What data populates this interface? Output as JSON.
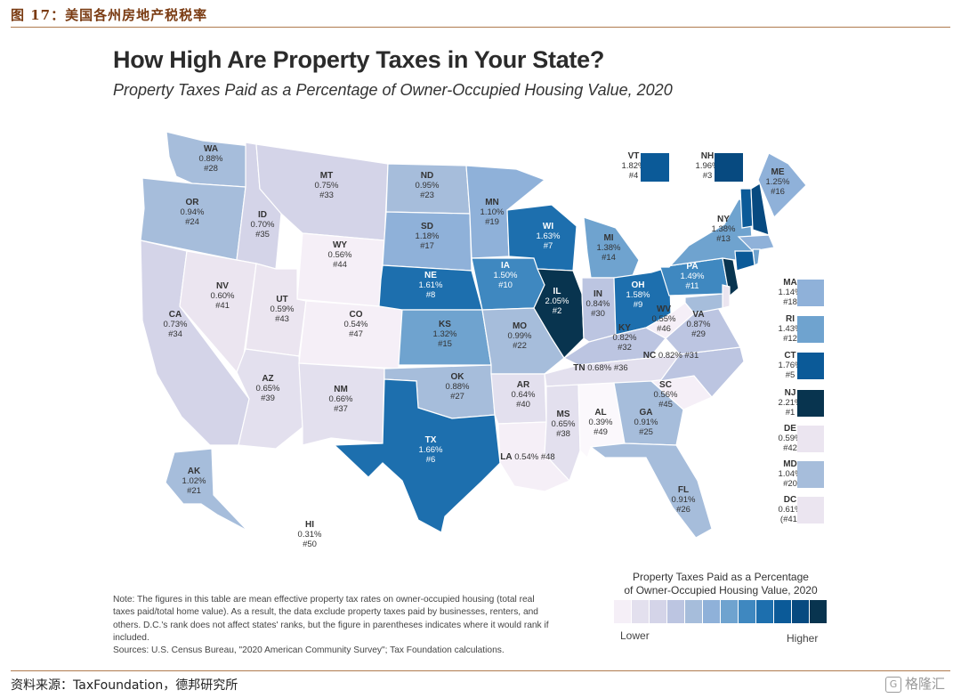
{
  "figure_header": "图 17：美国各州房地产税税率",
  "title": "How High Are Property Taxes in Your State?",
  "subtitle": "Property Taxes Paid as a Percentage of Owner-Occupied Housing Value, 2020",
  "legend": {
    "title_line1": "Property Taxes Paid as a Percentage",
    "title_line2": "of Owner-Occupied Housing Value, 2020",
    "lower": "Lower",
    "higher": "Higher",
    "colors": [
      "#f5eff7",
      "#e3e0ee",
      "#d4d4e8",
      "#bcc5e1",
      "#a6bddb",
      "#8fb1d9",
      "#6fa3cf",
      "#3f88c0",
      "#1d6fae",
      "#0b5a98",
      "#074a80",
      "#08344f"
    ]
  },
  "chart_data": {
    "type": "choropleth",
    "states": [
      {
        "abbr": "WA",
        "rate": "0.88%",
        "rank": "#28",
        "color": "#a6bddb"
      },
      {
        "abbr": "OR",
        "rate": "0.94%",
        "rank": "#24",
        "color": "#a6bddb"
      },
      {
        "abbr": "CA",
        "rate": "0.73%",
        "rank": "#34",
        "color": "#d4d4e8"
      },
      {
        "abbr": "ID",
        "rate": "0.70%",
        "rank": "#35",
        "color": "#d4d4e8"
      },
      {
        "abbr": "NV",
        "rate": "0.60%",
        "rank": "#41",
        "color": "#ebe5f0"
      },
      {
        "abbr": "MT",
        "rate": "0.75%",
        "rank": "#33",
        "color": "#d4d4e8"
      },
      {
        "abbr": "WY",
        "rate": "0.56%",
        "rank": "#44",
        "color": "#f5eff7"
      },
      {
        "abbr": "UT",
        "rate": "0.59%",
        "rank": "#43",
        "color": "#ebe5f0"
      },
      {
        "abbr": "AZ",
        "rate": "0.65%",
        "rank": "#39",
        "color": "#e3e0ee"
      },
      {
        "abbr": "CO",
        "rate": "0.54%",
        "rank": "#47",
        "color": "#f5eff7"
      },
      {
        "abbr": "NM",
        "rate": "0.66%",
        "rank": "#37",
        "color": "#e3e0ee"
      },
      {
        "abbr": "ND",
        "rate": "0.95%",
        "rank": "#23",
        "color": "#a6bddb"
      },
      {
        "abbr": "SD",
        "rate": "1.18%",
        "rank": "#17",
        "color": "#8fb1d9"
      },
      {
        "abbr": "NE",
        "rate": "1.61%",
        "rank": "#8",
        "color": "#1d6fae"
      },
      {
        "abbr": "KS",
        "rate": "1.32%",
        "rank": "#15",
        "color": "#6fa3cf"
      },
      {
        "abbr": "OK",
        "rate": "0.88%",
        "rank": "#27",
        "color": "#a6bddb"
      },
      {
        "abbr": "TX",
        "rate": "1.66%",
        "rank": "#6",
        "color": "#1d6fae"
      },
      {
        "abbr": "MN",
        "rate": "1.10%",
        "rank": "#19",
        "color": "#8fb1d9"
      },
      {
        "abbr": "IA",
        "rate": "1.50%",
        "rank": "#10",
        "color": "#3f88c0"
      },
      {
        "abbr": "MO",
        "rate": "0.99%",
        "rank": "#22",
        "color": "#a6bddb"
      },
      {
        "abbr": "AR",
        "rate": "0.64%",
        "rank": "#40",
        "color": "#e3e0ee"
      },
      {
        "abbr": "LA",
        "rate": "0.54%",
        "rank": "#48",
        "color": "#f5eff7"
      },
      {
        "abbr": "WI",
        "rate": "1.63%",
        "rank": "#7",
        "color": "#1d6fae"
      },
      {
        "abbr": "IL",
        "rate": "2.05%",
        "rank": "#2",
        "color": "#08344f"
      },
      {
        "abbr": "MI",
        "rate": "1.38%",
        "rank": "#14",
        "color": "#6fa3cf"
      },
      {
        "abbr": "IN",
        "rate": "0.84%",
        "rank": "#30",
        "color": "#bcc5e1"
      },
      {
        "abbr": "OH",
        "rate": "1.58%",
        "rank": "#9",
        "color": "#1d6fae"
      },
      {
        "abbr": "KY",
        "rate": "0.82%",
        "rank": "#32",
        "color": "#bcc5e1"
      },
      {
        "abbr": "TN",
        "rate": "0.68%",
        "rank": "#36",
        "color": "#e3e0ee"
      },
      {
        "abbr": "MS",
        "rate": "0.65%",
        "rank": "#38",
        "color": "#e3e0ee"
      },
      {
        "abbr": "AL",
        "rate": "0.39%",
        "rank": "#49",
        "color": "#fbf8fc"
      },
      {
        "abbr": "GA",
        "rate": "0.91%",
        "rank": "#25",
        "color": "#a6bddb"
      },
      {
        "abbr": "FL",
        "rate": "0.91%",
        "rank": "#26",
        "color": "#a6bddb"
      },
      {
        "abbr": "SC",
        "rate": "0.56%",
        "rank": "#45",
        "color": "#f5eff7"
      },
      {
        "abbr": "NC",
        "rate": "0.82%",
        "rank": "#31",
        "color": "#bcc5e1"
      },
      {
        "abbr": "VA",
        "rate": "0.87%",
        "rank": "#29",
        "color": "#bcc5e1"
      },
      {
        "abbr": "WV",
        "rate": "0.55%",
        "rank": "#46",
        "color": "#f5eff7"
      },
      {
        "abbr": "PA",
        "rate": "1.49%",
        "rank": "#11",
        "color": "#3f88c0"
      },
      {
        "abbr": "NY",
        "rate": "1.38%",
        "rank": "#13",
        "color": "#6fa3cf"
      },
      {
        "abbr": "VT",
        "rate": "1.82%",
        "rank": "#4",
        "color": "#0b5a98"
      },
      {
        "abbr": "NH",
        "rate": "1.96%",
        "rank": "#3",
        "color": "#074a80"
      },
      {
        "abbr": "ME",
        "rate": "1.25%",
        "rank": "#16",
        "color": "#8fb1d9"
      },
      {
        "abbr": "MA",
        "rate": "1.14%",
        "rank": "#18",
        "color": "#8fb1d9"
      },
      {
        "abbr": "RI",
        "rate": "1.43%",
        "rank": "#12",
        "color": "#6fa3cf"
      },
      {
        "abbr": "CT",
        "rate": "1.76%",
        "rank": "#5",
        "color": "#0b5a98"
      },
      {
        "abbr": "NJ",
        "rate": "2.21%",
        "rank": "#1",
        "color": "#08344f"
      },
      {
        "abbr": "DE",
        "rate": "0.59%",
        "rank": "#42",
        "color": "#ebe5f0"
      },
      {
        "abbr": "MD",
        "rate": "1.04%",
        "rank": "#20",
        "color": "#a6bddb"
      },
      {
        "abbr": "DC",
        "rate": "0.61%",
        "rank": "(#41)",
        "color": "#ebe5f0"
      },
      {
        "abbr": "AK",
        "rate": "1.02%",
        "rank": "#21",
        "color": "#a6bddb"
      },
      {
        "abbr": "HI",
        "rate": "0.31%",
        "rank": "#50",
        "color": "#ffffff"
      }
    ]
  },
  "note": "Note: The figures in this table are mean effective property tax rates on owner-occupied housing (total real taxes paid/total home value). As a result, the data exclude property taxes paid by businesses, renters, and others. D.C.'s rank does not affect states' ranks, but the figure in parentheses indicates where it would rank if included.",
  "sources": "Sources: U.S. Census Bureau, \"2020  American Community Survey\"; Tax Foundation calculations.",
  "footer": "资料来源：TaxFoundation，德邦研究所",
  "watermark": "格隆汇"
}
